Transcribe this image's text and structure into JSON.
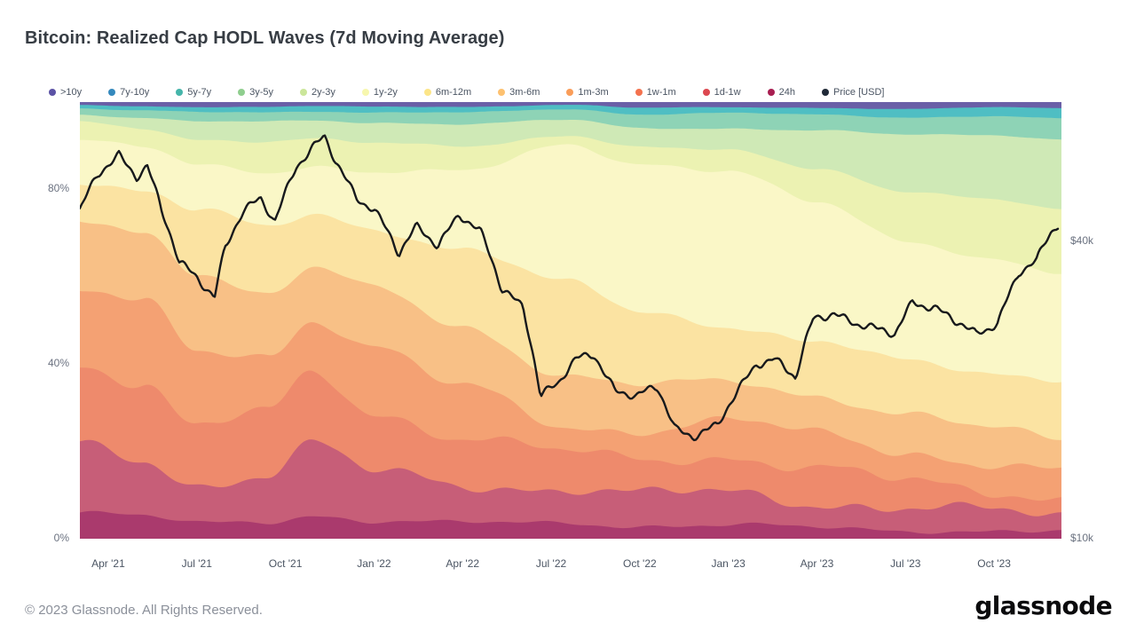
{
  "page": {
    "title": "Bitcoin: Realized Cap HODL Waves (7d Moving Average)",
    "footer_copyright": "© 2023 Glassnode. All Rights Reserved.",
    "brand_logo": "glassnode"
  },
  "legend": {
    "items": [
      {
        "label": ">10y",
        "color": "#5b52a5"
      },
      {
        "label": "7y-10y",
        "color": "#3489bd"
      },
      {
        "label": "5y-7y",
        "color": "#45b5aa"
      },
      {
        "label": "3y-5y",
        "color": "#8fce8e"
      },
      {
        "label": "2y-3y",
        "color": "#cbe69a"
      },
      {
        "label": "1y-2y",
        "color": "#f7f7ae"
      },
      {
        "label": "6m-12m",
        "color": "#fce588"
      },
      {
        "label": "3m-6m",
        "color": "#fdc170"
      },
      {
        "label": "1m-3m",
        "color": "#fa9d59"
      },
      {
        "label": "1w-1m",
        "color": "#f4724e"
      },
      {
        "label": "1d-1w",
        "color": "#dc4850"
      },
      {
        "label": "24h",
        "color": "#a81e51"
      },
      {
        "label": "Price [USD]",
        "color": "#1f2937"
      }
    ]
  },
  "chart_data": {
    "type": "area",
    "title": "Bitcoin: Realized Cap HODL Waves (7d Moving Average)",
    "stacking": "percent",
    "grid": "off",
    "legend_position": "top",
    "x_range": [
      2021.17,
      2023.94
    ],
    "x_ticks": [
      {
        "label": "Apr '21",
        "t": 2021.25
      },
      {
        "label": "Jul '21",
        "t": 2021.5
      },
      {
        "label": "Oct '21",
        "t": 2021.75
      },
      {
        "label": "Jan '22",
        "t": 2022.0
      },
      {
        "label": "Apr '22",
        "t": 2022.25
      },
      {
        "label": "Jul '22",
        "t": 2022.5
      },
      {
        "label": "Oct '22",
        "t": 2022.75
      },
      {
        "label": "Jan '23",
        "t": 2023.0
      },
      {
        "label": "Apr '23",
        "t": 2023.25
      },
      {
        "label": "Jul '23",
        "t": 2023.5
      },
      {
        "label": "Oct '23",
        "t": 2023.75
      }
    ],
    "y_left": {
      "unit": "%",
      "min": 0,
      "max": 100,
      "ticks": [
        {
          "label": "80%",
          "value": 80
        },
        {
          "label": "40%",
          "value": 40
        },
        {
          "label": "0%",
          "value": 0
        }
      ]
    },
    "y_right": {
      "unit": "USD",
      "scale": "log",
      "bottom_value": 10000,
      "top_value": 76500,
      "ticks": [
        {
          "label": "$40k",
          "value": 40000
        },
        {
          "label": "$10k",
          "value": 10000
        }
      ]
    },
    "anchors_t": [
      2021.17,
      2021.35,
      2021.5,
      2021.7,
      2021.83,
      2022.0,
      2022.25,
      2022.55,
      2022.75,
      2023.0,
      2023.25,
      2023.5,
      2023.75,
      2023.94
    ],
    "bands": [
      {
        "name": "24h",
        "color": "#aa3a6d",
        "values": [
          6.0,
          5.0,
          3.5,
          4.0,
          5.5,
          4.0,
          3.5,
          3.7,
          3.0,
          3.0,
          2.5,
          2.0,
          1.8,
          1.5
        ]
      },
      {
        "name": "1d-1w",
        "color": "#c75e78",
        "values": [
          15.0,
          13.0,
          9.0,
          11.0,
          16.0,
          11.0,
          9.0,
          7.9,
          7.0,
          7.5,
          6.0,
          5.0,
          4.2,
          3.6
        ]
      },
      {
        "name": "1w-1m",
        "color": "#ee8a6c",
        "values": [
          19.0,
          18.0,
          13.0,
          14.0,
          16.0,
          14.0,
          11.0,
          8.0,
          8.0,
          8.5,
          7.5,
          6.0,
          5.0,
          4.4
        ]
      },
      {
        "name": "1m-3m",
        "color": "#f4a173",
        "values": [
          17.0,
          18.0,
          17.0,
          13.0,
          13.0,
          15.0,
          11.0,
          6.0,
          7.0,
          8.0,
          8.0,
          7.0,
          6.0,
          5.7
        ]
      },
      {
        "name": "3m-6m",
        "color": "#f8c086",
        "values": [
          15.5,
          16.0,
          19.0,
          14.0,
          11.5,
          13.0,
          14.0,
          11.8,
          10.0,
          9.0,
          9.0,
          8.5,
          8.0,
          7.7
        ]
      },
      {
        "name": "6m-12m",
        "color": "#fbe3a2",
        "values": [
          9.5,
          10.0,
          14.0,
          15.0,
          12.0,
          14.0,
          18.0,
          21.0,
          17.0,
          13.0,
          12.0,
          12.0,
          13.0,
          14.0
        ]
      },
      {
        "name": "1y-2y",
        "color": "#faf7c7",
        "values": [
          9.3,
          9.5,
          10.0,
          13.0,
          11.5,
          13.0,
          17.5,
          32.0,
          34.0,
          35.0,
          32.0,
          28.0,
          26.0,
          23.6
        ]
      },
      {
        "name": "2y-3y",
        "color": "#ecf2b2",
        "values": [
          4.0,
          4.5,
          6.0,
          7.0,
          6.0,
          6.5,
          6.0,
          2.0,
          3.5,
          5.0,
          8.0,
          11.0,
          13.5,
          15.0
        ]
      },
      {
        "name": "3y-5y",
        "color": "#cfe9b6",
        "values": [
          1.8,
          2.5,
          4.0,
          4.5,
          4.2,
          4.8,
          5.0,
          3.5,
          4.5,
          5.0,
          8.5,
          13.0,
          15.0,
          16.0
        ]
      },
      {
        "name": "5y-7y",
        "color": "#8ed3b6",
        "values": [
          1.4,
          1.5,
          2.2,
          2.2,
          2.2,
          2.3,
          2.6,
          2.5,
          3.2,
          3.5,
          3.6,
          4.0,
          4.3,
          4.7
        ]
      },
      {
        "name": "7y-10y",
        "color": "#4fbec3",
        "values": [
          0.8,
          1.0,
          1.2,
          1.2,
          1.2,
          1.3,
          1.3,
          1.0,
          1.5,
          1.3,
          1.6,
          1.9,
          2.0,
          2.4
        ]
      },
      {
        "name": ">10y",
        "color": "#6a5fa7",
        "values": [
          0.7,
          1.0,
          1.1,
          1.1,
          0.9,
          1.1,
          1.1,
          0.6,
          1.3,
          1.2,
          1.3,
          1.6,
          1.2,
          1.4
        ]
      }
    ],
    "price_series": {
      "name": "Price [USD]",
      "color": "#17191c",
      "points": [
        [
          2021.17,
          46000
        ],
        [
          2021.22,
          54000
        ],
        [
          2021.28,
          60000
        ],
        [
          2021.33,
          54500
        ],
        [
          2021.36,
          57000
        ],
        [
          2021.4,
          46000
        ],
        [
          2021.45,
          36000
        ],
        [
          2021.5,
          34000
        ],
        [
          2021.55,
          31000
        ],
        [
          2021.58,
          39000
        ],
        [
          2021.63,
          45500
        ],
        [
          2021.68,
          48500
        ],
        [
          2021.72,
          44000
        ],
        [
          2021.78,
          57000
        ],
        [
          2021.83,
          62000
        ],
        [
          2021.86,
          64500
        ],
        [
          2021.89,
          58000
        ],
        [
          2021.95,
          49000
        ],
        [
          2022.0,
          47000
        ],
        [
          2022.07,
          37500
        ],
        [
          2022.12,
          42500
        ],
        [
          2022.18,
          39500
        ],
        [
          2022.24,
          45500
        ],
        [
          2022.3,
          41500
        ],
        [
          2022.36,
          32000
        ],
        [
          2022.42,
          29800
        ],
        [
          2022.47,
          19500
        ],
        [
          2022.52,
          20500
        ],
        [
          2022.57,
          23000
        ],
        [
          2022.62,
          23800
        ],
        [
          2022.68,
          20000
        ],
        [
          2022.74,
          19300
        ],
        [
          2022.8,
          20200
        ],
        [
          2022.85,
          16800
        ],
        [
          2022.9,
          16200
        ],
        [
          2022.97,
          16800
        ],
        [
          2023.02,
          19500
        ],
        [
          2023.08,
          22800
        ],
        [
          2023.13,
          23200
        ],
        [
          2023.19,
          21000
        ],
        [
          2023.24,
          27800
        ],
        [
          2023.3,
          28800
        ],
        [
          2023.36,
          27300
        ],
        [
          2023.42,
          26300
        ],
        [
          2023.47,
          25900
        ],
        [
          2023.52,
          30400
        ],
        [
          2023.58,
          29400
        ],
        [
          2023.64,
          27400
        ],
        [
          2023.7,
          25900
        ],
        [
          2023.76,
          27600
        ],
        [
          2023.82,
          34500
        ],
        [
          2023.87,
          36200
        ],
        [
          2023.91,
          41500
        ],
        [
          2023.94,
          44200
        ]
      ]
    }
  }
}
